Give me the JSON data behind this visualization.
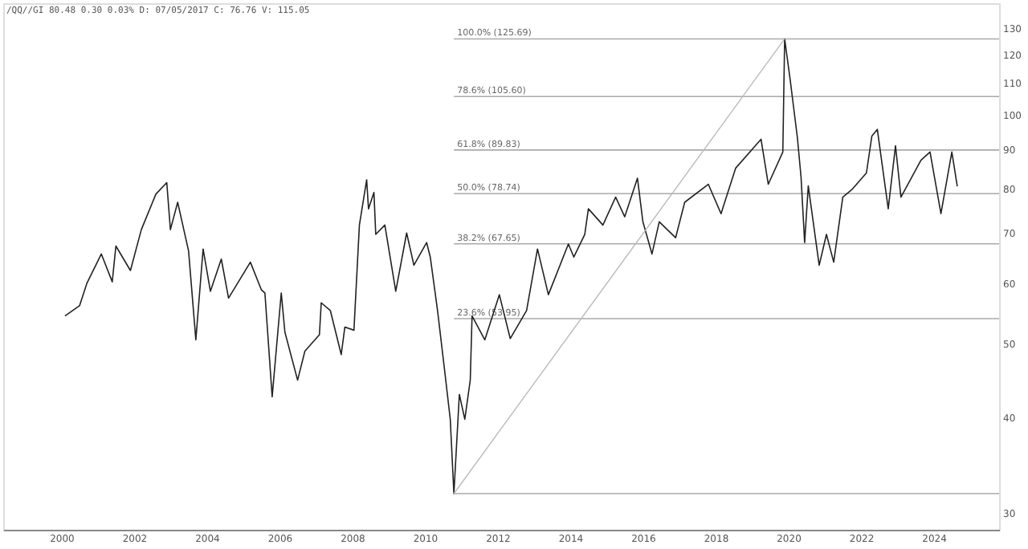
{
  "chart_data": {
    "type": "line",
    "log": "y",
    "grid": false,
    "annotations": [
      "/QQ//GI 80.48 0.30 0.03% D: 07/05/2017 C: 76.76 V: 115.05"
    ],
    "xlim": [
      1998.4,
      2025.8
    ],
    "xticks": [
      2000,
      2002,
      2004,
      2006,
      2008,
      2010,
      2012,
      2014,
      2016,
      2018,
      2020,
      2022,
      2024
    ],
    "ylim": [
      28.5,
      140
    ],
    "yticks": [
      30,
      40,
      50,
      60,
      70,
      80,
      90,
      100,
      110,
      120,
      130
    ],
    "ref_lines": [
      {
        "axis": "y",
        "value": 125.69,
        "label": "100.0% (125.69)"
      },
      {
        "axis": "y",
        "value": 105.6,
        "label": "78.6% (105.60)"
      },
      {
        "axis": "y",
        "value": 89.83,
        "label": "61.8% (89.83)"
      },
      {
        "axis": "y",
        "value": 78.74,
        "label": "50.0% (78.74)"
      },
      {
        "axis": "y",
        "value": 67.65,
        "label": "38.2% (67.65)"
      },
      {
        "axis": "y",
        "value": 53.95,
        "label": "23.6% (53.95)"
      },
      {
        "axis": "y",
        "value": 31.79,
        "label": null
      }
    ],
    "series": [
      {
        "color": "#222222",
        "x": [
          2000.1,
          2000.5,
          2000.7,
          2001.1,
          2001.4,
          2001.5,
          2001.9,
          2002.2,
          2002.6,
          2002.9,
          2003.0,
          2003.2,
          2003.5,
          2003.7,
          2003.9,
          2004.1,
          2004.4,
          2004.6,
          2005.2,
          2005.5,
          2005.6,
          2005.8,
          2006.05,
          2006.15,
          2006.5,
          2006.7,
          2007.1,
          2007.15,
          2007.4,
          2007.7,
          2007.8,
          2008.05,
          2008.2,
          2008.4,
          2008.45,
          2008.6,
          2008.65,
          2008.9,
          2009.2,
          2009.5,
          2009.7,
          2010.05,
          2010.15,
          2010.35,
          2010.55,
          2010.7,
          2010.8,
          2010.95,
          2011.1,
          2011.25,
          2011.3,
          2011.65,
          2012.05,
          2012.35,
          2012.8,
          2013.1,
          2013.4,
          2013.95,
          2014.1,
          2014.4,
          2014.5,
          2014.9,
          2015.25,
          2015.5,
          2015.85,
          2016.0,
          2016.25,
          2016.45,
          2016.9,
          2017.15,
          2017.8,
          2018.15,
          2018.55,
          2019.25,
          2019.45,
          2019.85,
          2019.9,
          2020.05,
          2020.25,
          2020.35,
          2020.45,
          2020.55,
          2020.85,
          2021.05,
          2021.25,
          2021.5,
          2021.75,
          2022.15,
          2022.3,
          2022.45,
          2022.75,
          2022.95,
          2023.1,
          2023.65,
          2023.9,
          2024.2,
          2024.5,
          2024.65
        ],
        "values": [
          54.4,
          56.1,
          60.0,
          65.6,
          60.3,
          67.2,
          62.4,
          70.6,
          78.6,
          81.4,
          70.6,
          76.7,
          66.2,
          50.6,
          66.6,
          58.6,
          64.6,
          57.4,
          64.0,
          58.9,
          58.3,
          42.6,
          58.3,
          51.8,
          44.8,
          48.9,
          51.4,
          56.6,
          55.3,
          48.4,
          52.6,
          52.1,
          71.6,
          82.1,
          75.2,
          79.0,
          69.6,
          71.6,
          58.6,
          69.9,
          63.4,
          67.9,
          65.0,
          55.3,
          45.9,
          39.8,
          31.79,
          42.9,
          39.8,
          44.8,
          54.4,
          50.6,
          58.0,
          50.8,
          55.3,
          66.6,
          58.0,
          67.6,
          65.0,
          69.6,
          75.2,
          71.6,
          77.9,
          73.4,
          82.5,
          72.3,
          65.6,
          72.3,
          68.9,
          76.7,
          81.0,
          74.1,
          85.0,
          92.8,
          81.0,
          89.3,
          125.69,
          111.3,
          93.3,
          82.9,
          67.9,
          80.6,
          63.4,
          69.6,
          64.0,
          77.9,
          79.7,
          83.8,
          93.7,
          95.6,
          75.2,
          91.0,
          77.9,
          87.1,
          89.3,
          74.1,
          89.3,
          80.48
        ]
      },
      {
        "color": "#bbbbbb",
        "x": [
          2010.8,
          2019.9
        ],
        "values": [
          31.79,
          125.69
        ]
      }
    ]
  }
}
